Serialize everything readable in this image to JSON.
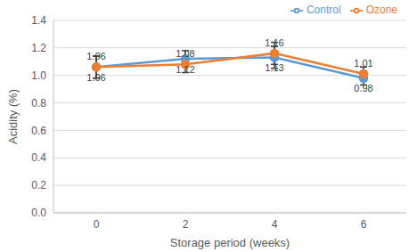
{
  "chart_data": {
    "type": "line",
    "x_label": "Storage period (weeks)",
    "y_label": "Acidity (%)",
    "categories": [
      "0",
      "2",
      "4",
      "6"
    ],
    "series": [
      {
        "name": "Control",
        "color": "#5b9bd5",
        "marker": "circle",
        "values": [
          1.06,
          1.12,
          1.13,
          0.98
        ],
        "errors": [
          0.08,
          0.06,
          0.08,
          0.05
        ]
      },
      {
        "name": "Ozone",
        "color": "#ed7d31",
        "marker": "circle",
        "values": [
          1.06,
          1.08,
          1.16,
          1.01
        ],
        "errors": [
          0.08,
          0.06,
          0.08,
          0.05
        ]
      }
    ],
    "ylim": [
      0,
      1.4
    ],
    "yticks": [
      {
        "value": 0,
        "label": "0.0"
      },
      0.2,
      0.4,
      0.6,
      0.8,
      {
        "value": 1,
        "label": "1.0"
      },
      1.2,
      1.4
    ],
    "grid": true,
    "legend": "upper right",
    "data_labels": true
  }
}
